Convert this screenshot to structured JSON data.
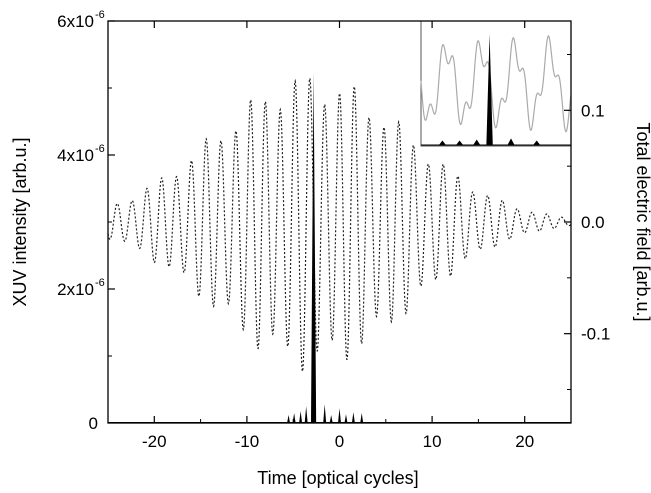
{
  "chart_data": {
    "type": "line",
    "title": "",
    "xlabel": "Time [optical cycles]",
    "ylabel_left": "XUV intensity [arb.u.]",
    "ylabel_right": "Total electric field [arb.u.]",
    "xlim": [
      -25,
      25
    ],
    "ylim_left": [
      0,
      6e-06
    ],
    "ylim_right": [
      -0.18,
      0.18
    ],
    "x_ticks": [
      "-20",
      "-10",
      "0",
      "10",
      "20"
    ],
    "y_left_tick_mantissas": [
      "2x10",
      "4x10",
      "6x10"
    ],
    "y_left_tick_exponent": "-6",
    "y_left_tick_zero": "0",
    "y_right_ticks": [
      "0.1",
      "0.0",
      "-0.1"
    ],
    "grid": false,
    "legend": "none",
    "series": [
      {
        "axis": "right",
        "style": "dotted",
        "description": "total electric field: oscillating carrier, period ~1.6 cycles, Gaussian envelope",
        "envelope_peak": 0.12,
        "envelope_center": -3,
        "envelope_sigma": 10.5,
        "carrier_period": 1.6
      },
      {
        "axis": "left",
        "style": "solid-filled",
        "description": "XUV intensity: isolated attosecond burst with weak satellites",
        "x": [
          -5.5,
          -4.9,
          -4.2,
          -3.6,
          -2.8,
          -1.6,
          -0.9,
          0.0,
          0.7,
          1.5,
          2.4
        ],
        "y": [
          1.2e-07,
          1.5e-07,
          1.8e-07,
          2.5e-07,
          5.25e-06,
          2.8e-07,
          1.2e-07,
          2.2e-07,
          1.3e-07,
          1.6e-07,
          1.5e-07
        ]
      }
    ],
    "inset": {
      "position": "top-right",
      "x_range": [
        -6,
        1
      ],
      "series": [
        {
          "style": "light-gray line",
          "description": "electric field detail"
        },
        {
          "style": "black filled",
          "description": "XUV peaks",
          "x": [
            -5.0,
            -4.2,
            -3.4,
            -2.8,
            -1.8,
            -0.6
          ],
          "y": [
            0.04,
            0.04,
            0.05,
            1.0,
            0.06,
            0.04
          ]
        }
      ]
    }
  }
}
